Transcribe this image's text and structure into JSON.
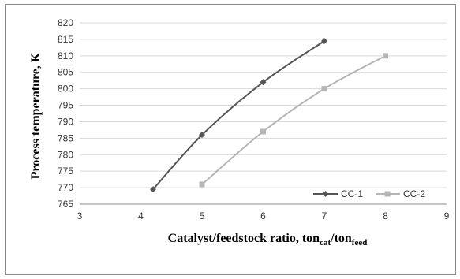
{
  "chart_data": {
    "type": "line",
    "xlabel": "Catalyst/feedstock ratio, ton",
    "xlabel_sub1": "cat",
    "xlabel_mid": "/ton",
    "xlabel_sub2": "feed",
    "ylabel": "Process temperature, K",
    "xlim": [
      3,
      9
    ],
    "ylim": [
      765,
      820
    ],
    "xticks": [
      3,
      4,
      5,
      6,
      7,
      8,
      9
    ],
    "yticks": [
      765,
      770,
      775,
      780,
      785,
      790,
      795,
      800,
      805,
      810,
      815,
      820
    ],
    "grid": "horizontal",
    "legend_position": "bottom-right",
    "series": [
      {
        "name": "CC-1",
        "color": "#555555",
        "marker": "diamond",
        "x": [
          4.2,
          5,
          6,
          7
        ],
        "y": [
          769.5,
          786,
          802,
          814.5
        ]
      },
      {
        "name": "CC-2",
        "color": "#b5b5b5",
        "marker": "square",
        "x": [
          5,
          6,
          7,
          8
        ],
        "y": [
          771,
          787,
          800,
          810
        ]
      }
    ]
  }
}
